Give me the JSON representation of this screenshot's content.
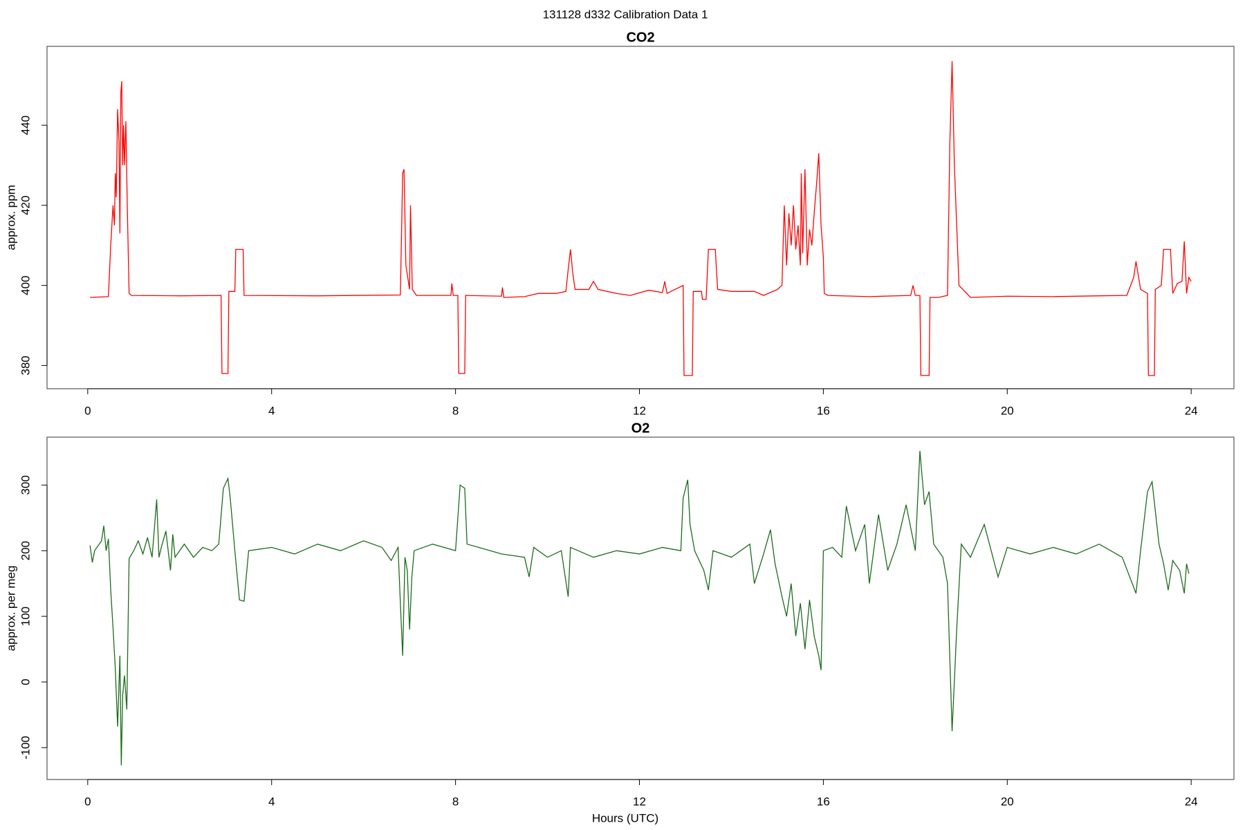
{
  "title": "131128   d332   Calibration Data 1",
  "chart_data": [
    {
      "type": "line",
      "title": "CO2",
      "y_label": "approx. ppm",
      "xlim": [
        -0.885,
        24.93
      ],
      "xticks": [
        0,
        4,
        8,
        12,
        16,
        20,
        24
      ],
      "ylim": [
        374.2,
        459.7
      ],
      "yticks": [
        380,
        400,
        420,
        440
      ],
      "x": [
        0.05,
        0.45,
        0.5,
        0.55,
        0.58,
        0.6,
        0.62,
        0.65,
        0.68,
        0.7,
        0.72,
        0.74,
        0.76,
        0.78,
        0.8,
        0.83,
        0.86,
        0.9,
        0.95,
        2.0,
        2.9,
        2.92,
        3.05,
        3.07,
        3.2,
        3.22,
        3.38,
        3.4,
        5.0,
        6.8,
        6.85,
        6.88,
        6.92,
        7.0,
        7.02,
        7.06,
        7.15,
        7.9,
        7.92,
        7.95,
        8.05,
        8.07,
        8.2,
        8.22,
        9.0,
        9.02,
        9.05,
        9.5,
        9.8,
        10.2,
        10.4,
        10.45,
        10.5,
        10.55,
        10.6,
        10.9,
        11.0,
        11.1,
        11.5,
        11.8,
        12.2,
        12.5,
        12.55,
        12.6,
        12.95,
        12.97,
        13.15,
        13.17,
        13.35,
        13.37,
        13.45,
        13.5,
        13.65,
        13.7,
        14.0,
        14.5,
        14.7,
        15.0,
        15.1,
        15.15,
        15.2,
        15.25,
        15.3,
        15.35,
        15.4,
        15.45,
        15.5,
        15.52,
        15.55,
        15.6,
        15.65,
        15.7,
        15.75,
        15.8,
        15.85,
        15.9,
        15.95,
        16.0,
        16.02,
        16.1,
        17.0,
        17.9,
        17.95,
        18.0,
        18.1,
        18.12,
        18.3,
        18.32,
        18.5,
        18.7,
        18.75,
        18.8,
        18.85,
        18.95,
        19.2,
        20.0,
        21.0,
        22.0,
        22.6,
        22.75,
        22.8,
        22.9,
        23.05,
        23.07,
        23.2,
        23.22,
        23.35,
        23.4,
        23.55,
        23.6,
        23.7,
        23.8,
        23.85,
        23.9,
        23.95,
        24.0
      ],
      "series": [
        {
          "name": "CO2",
          "color": "#ff0000",
          "values": [
            397,
            397.2,
            410,
            420,
            415,
            428,
            422,
            444,
            436,
            413,
            448,
            451,
            430,
            440,
            430,
            441,
            420,
            398,
            397.5,
            397.4,
            397.5,
            378,
            378,
            398.5,
            398.5,
            409,
            409,
            397.5,
            397.4,
            397.6,
            428,
            429,
            405,
            399,
            420,
            399,
            397.5,
            397.5,
            400.5,
            397.5,
            397.5,
            378,
            378,
            397.5,
            397.3,
            399.5,
            397,
            397.2,
            398,
            398,
            398.5,
            404,
            409,
            403,
            399,
            399,
            401,
            399,
            398,
            397.5,
            398.8,
            398.2,
            401,
            398,
            400,
            377.5,
            377.5,
            398.5,
            398.5,
            396.5,
            396.5,
            409,
            409,
            399,
            398.5,
            398.5,
            397.5,
            399,
            400,
            420,
            405,
            418,
            410,
            420,
            409,
            415,
            405,
            428,
            408,
            429,
            405,
            414,
            410,
            418,
            425,
            433,
            415,
            407,
            398,
            397.5,
            397.2,
            397.5,
            400,
            397.5,
            397.5,
            377.5,
            377.5,
            397,
            397,
            397.5,
            435,
            456,
            430,
            400,
            397,
            397.3,
            397.2,
            397.4,
            397.5,
            402,
            406,
            399,
            398,
            377.5,
            377.5,
            399,
            400,
            409,
            409,
            398,
            400.5,
            401,
            411,
            398,
            402,
            401
          ]
        }
      ]
    },
    {
      "type": "line",
      "title": "O2",
      "y_label": "approx. per meg",
      "x_label": "Hours (UTC)",
      "xlim": [
        -0.885,
        24.93
      ],
      "xticks": [
        0,
        4,
        8,
        12,
        16,
        20,
        24
      ],
      "ylim": [
        -148.6,
        373
      ],
      "yticks": [
        -100,
        0,
        100,
        200,
        300
      ],
      "x": [
        0.05,
        0.1,
        0.15,
        0.3,
        0.35,
        0.4,
        0.45,
        0.5,
        0.55,
        0.6,
        0.65,
        0.7,
        0.73,
        0.76,
        0.8,
        0.85,
        0.9,
        1.0,
        1.1,
        1.2,
        1.3,
        1.4,
        1.5,
        1.55,
        1.6,
        1.7,
        1.8,
        1.85,
        1.9,
        2.1,
        2.3,
        2.5,
        2.7,
        2.85,
        2.95,
        3.05,
        3.1,
        3.2,
        3.3,
        3.4,
        3.5,
        4.0,
        4.5,
        5.0,
        5.5,
        6.0,
        6.4,
        6.6,
        6.75,
        6.8,
        6.85,
        6.9,
        6.95,
        7.0,
        7.05,
        7.1,
        7.5,
        8.0,
        8.1,
        8.2,
        8.25,
        8.5,
        9.0,
        9.5,
        9.6,
        9.7,
        10.0,
        10.3,
        10.45,
        10.5,
        11.0,
        11.5,
        12.0,
        12.5,
        12.9,
        12.95,
        13.05,
        13.1,
        13.2,
        13.4,
        13.5,
        13.6,
        14.0,
        14.4,
        14.5,
        14.7,
        14.85,
        14.95,
        15.1,
        15.2,
        15.3,
        15.4,
        15.5,
        15.6,
        15.7,
        15.8,
        15.9,
        15.95,
        16.0,
        16.2,
        16.4,
        16.5,
        16.7,
        16.9,
        17.0,
        17.2,
        17.4,
        17.6,
        17.8,
        18.0,
        18.1,
        18.2,
        18.3,
        18.4,
        18.6,
        18.7,
        18.8,
        18.9,
        19.0,
        19.2,
        19.5,
        19.8,
        20.0,
        20.5,
        21.0,
        21.5,
        22.0,
        22.5,
        22.8,
        22.9,
        23.05,
        23.15,
        23.3,
        23.4,
        23.5,
        23.6,
        23.75,
        23.85,
        23.9,
        23.95
      ],
      "series": [
        {
          "name": "O2",
          "color": "#1a6b1a",
          "values": [
            208,
            182,
            200,
            215,
            238,
            200,
            218,
            140,
            83,
            20,
            -68,
            40,
            -127,
            -20,
            10,
            -42,
            188,
            200,
            215,
            195,
            220,
            190,
            278,
            190,
            205,
            230,
            170,
            225,
            190,
            210,
            190,
            205,
            200,
            210,
            295,
            310,
            280,
            200,
            125,
            123,
            200,
            205,
            195,
            210,
            200,
            215,
            205,
            185,
            205,
            120,
            40,
            190,
            170,
            80,
            160,
            200,
            210,
            200,
            300,
            295,
            210,
            205,
            195,
            190,
            160,
            205,
            190,
            200,
            130,
            205,
            190,
            200,
            195,
            205,
            200,
            280,
            308,
            240,
            200,
            170,
            140,
            200,
            190,
            210,
            150,
            195,
            232,
            180,
            130,
            100,
            150,
            70,
            120,
            50,
            125,
            70,
            40,
            18,
            200,
            205,
            190,
            268,
            200,
            240,
            150,
            255,
            170,
            210,
            270,
            200,
            352,
            270,
            290,
            210,
            190,
            150,
            -75,
            80,
            210,
            190,
            240,
            160,
            205,
            195,
            205,
            195,
            210,
            190,
            135,
            200,
            290,
            305,
            210,
            180,
            140,
            185,
            170,
            135,
            180,
            165
          ]
        }
      ]
    }
  ]
}
